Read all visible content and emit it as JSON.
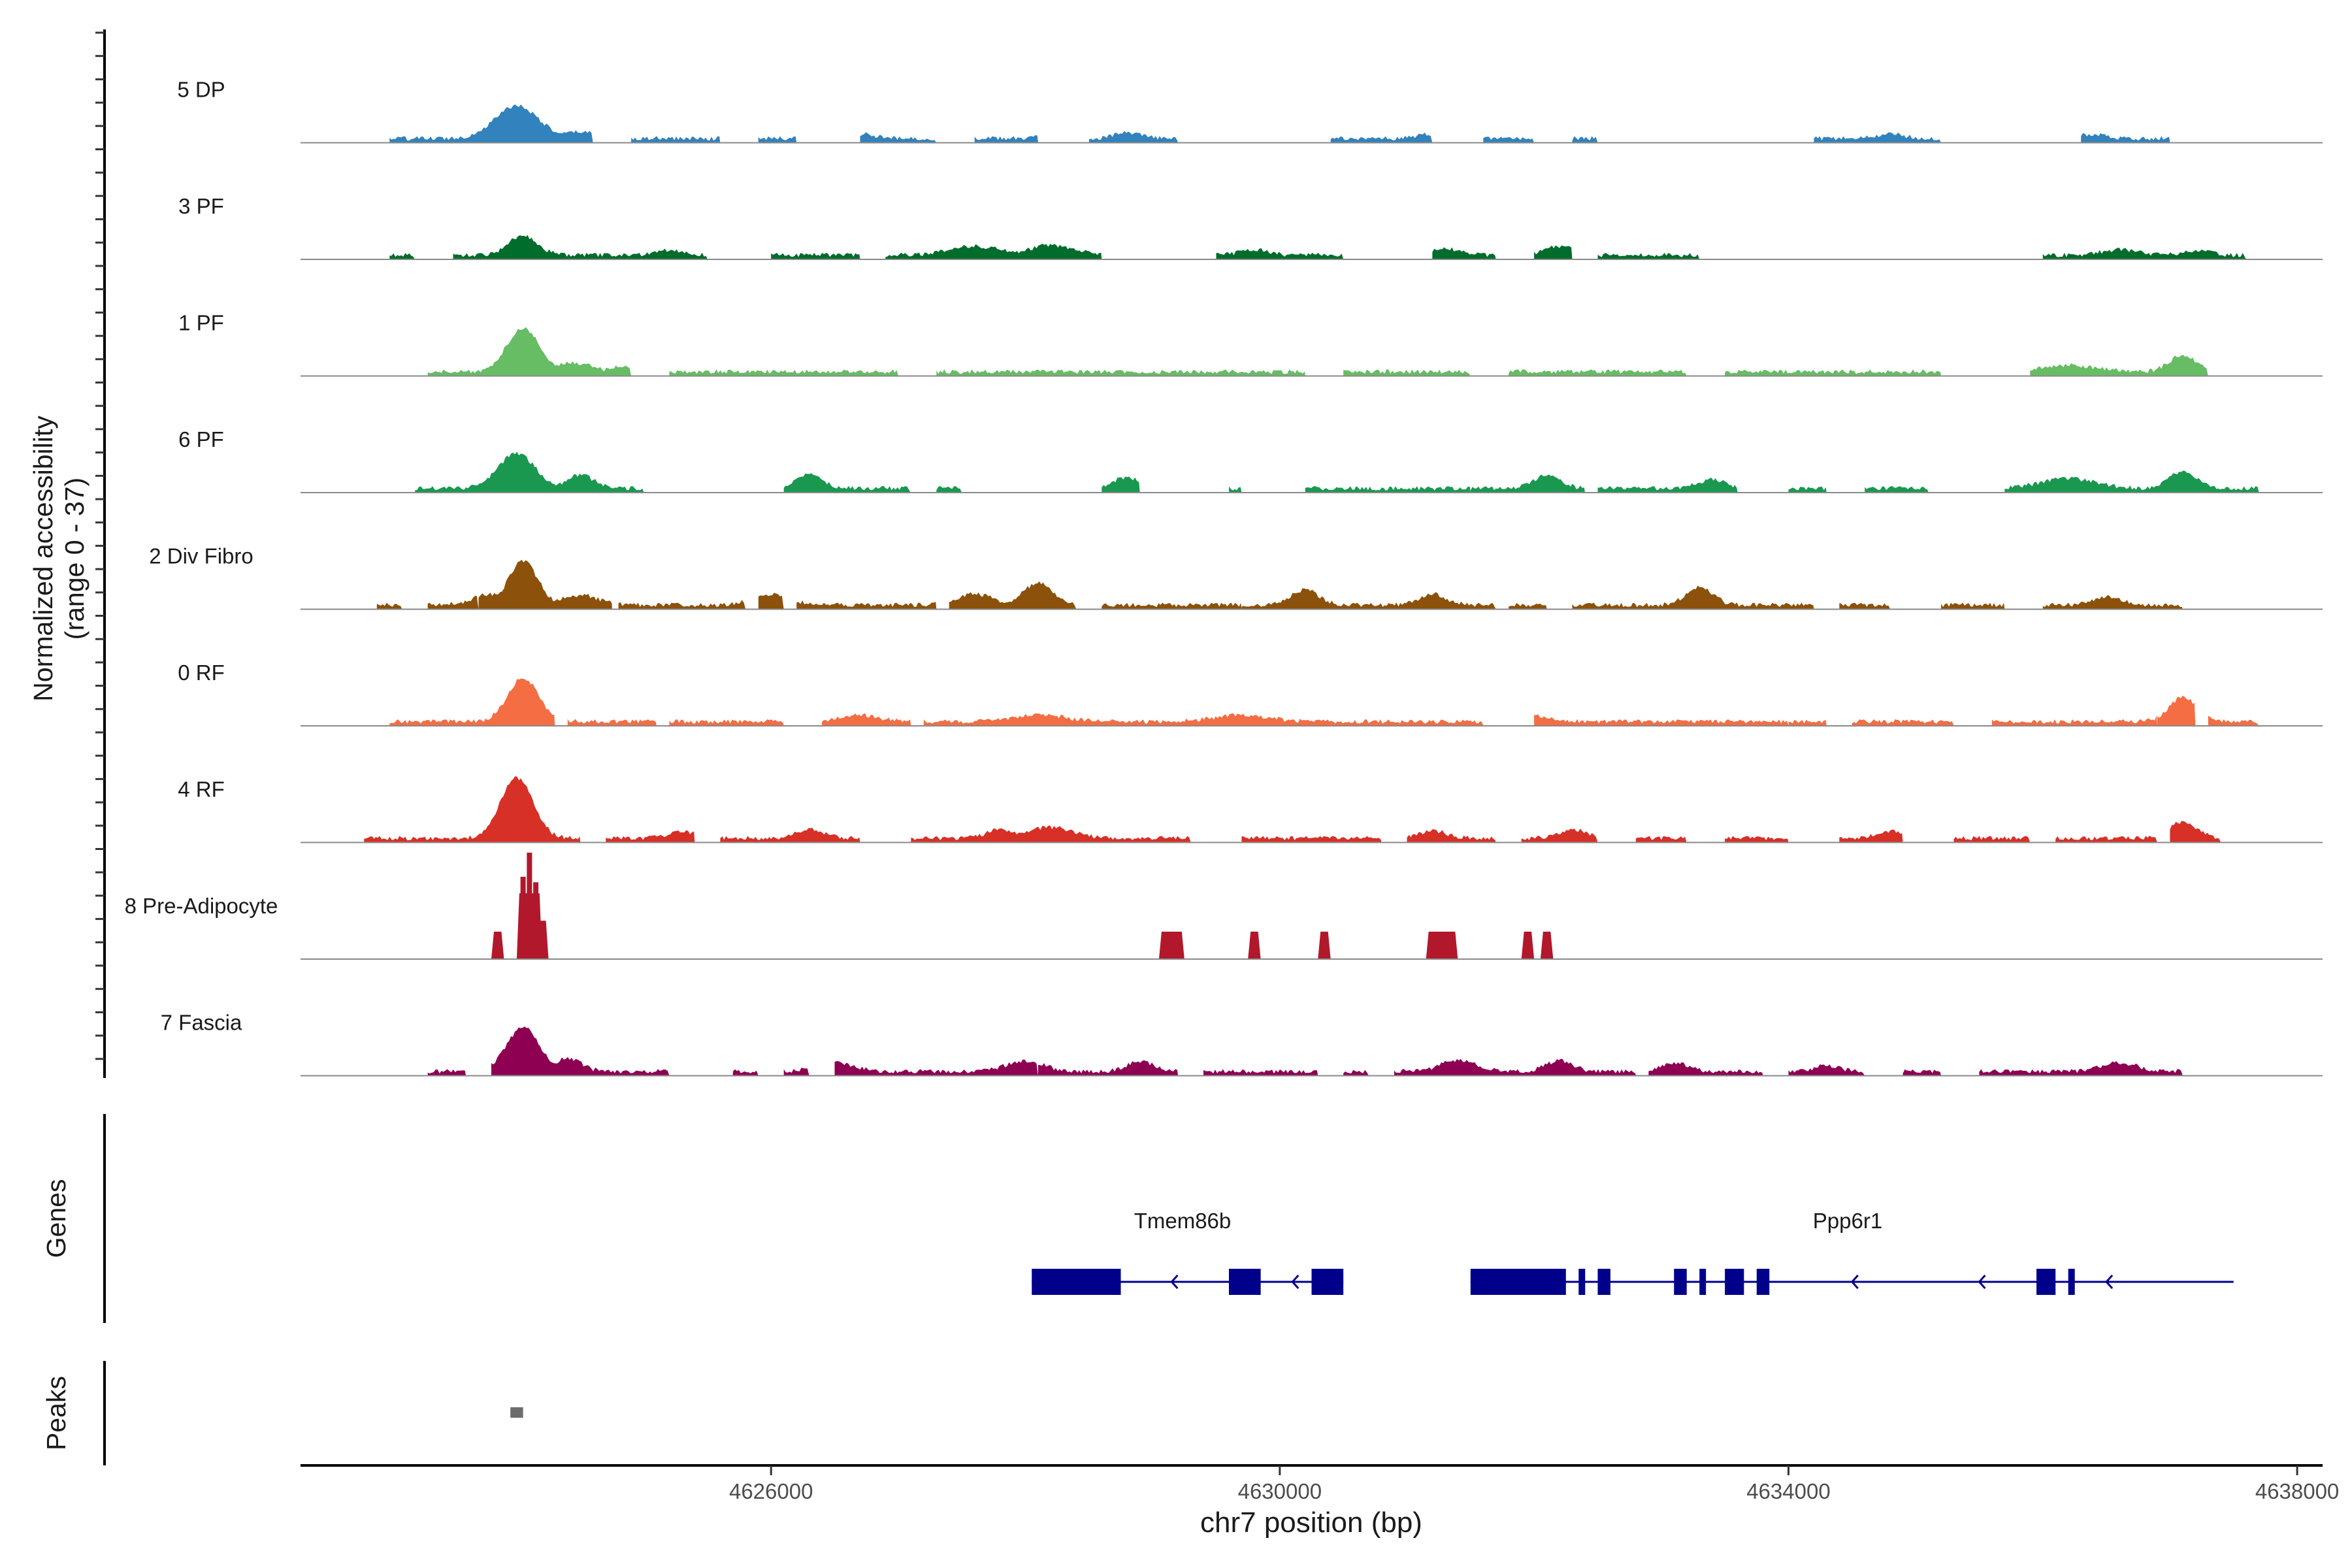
{
  "chart_data": {
    "type": "area",
    "description_title": "",
    "ylabel_line1": "Normalized accessibility",
    "ylabel_line2": "(range 0 - 37)",
    "y_range": [
      0,
      37
    ],
    "xlabel": "chr7 position (bp)",
    "x_range": [
      4622300,
      4638200
    ],
    "x_ticks": [
      4626000,
      4630000,
      4634000,
      4638000
    ],
    "x_tick_labels": [
      "4626000",
      "4630000",
      "4634000",
      "4638000"
    ],
    "genes_panel_label": "Genes",
    "peaks_panel_label": "Peaks",
    "tracks": [
      {
        "name": "5 DP",
        "color": "#3182bd",
        "peaks": [
          [
            4624000,
            30,
            240
          ],
          [
            4624500,
            6,
            200
          ],
          [
            4626700,
            4,
            150
          ],
          [
            4628200,
            4,
            120
          ],
          [
            4628800,
            5,
            150
          ],
          [
            4631200,
            4,
            150
          ],
          [
            4634800,
            4,
            150
          ],
          [
            4636400,
            4,
            150
          ]
        ],
        "coverage": [
          [
            4623000,
            4624600
          ],
          [
            4624900,
            4625600
          ],
          [
            4625900,
            4626200
          ],
          [
            4626700,
            4627300
          ],
          [
            4627600,
            4628100
          ],
          [
            4628500,
            4629200
          ],
          [
            4630400,
            4631200
          ],
          [
            4631600,
            4632000
          ],
          [
            4632300,
            4632500
          ],
          [
            4634200,
            4635200
          ],
          [
            4636300,
            4637000
          ]
        ]
      },
      {
        "name": "3 PF",
        "color": "#006d2c",
        "peaks": [
          [
            4624050,
            18,
            160
          ],
          [
            4625200,
            5,
            150
          ],
          [
            4627600,
            8,
            300
          ],
          [
            4628200,
            9,
            250
          ],
          [
            4629800,
            5,
            150
          ],
          [
            4631300,
            6,
            150
          ],
          [
            4632200,
            8,
            150
          ],
          [
            4636600,
            5,
            200
          ],
          [
            4637200,
            4,
            150
          ]
        ],
        "coverage": [
          [
            4623000,
            4623200
          ],
          [
            4623500,
            4625500
          ],
          [
            4626000,
            4626700
          ],
          [
            4626900,
            4628600
          ],
          [
            4629500,
            4630500
          ],
          [
            4631200,
            4631700
          ],
          [
            4632000,
            4632300
          ],
          [
            4632500,
            4633300
          ],
          [
            4636000,
            4637600
          ]
        ]
      },
      {
        "name": "1 PF",
        "color": "#66bd63",
        "peaks": [
          [
            4624050,
            40,
            180
          ],
          [
            4624450,
            8,
            200
          ],
          [
            4624800,
            5,
            100
          ],
          [
            4636200,
            6,
            300
          ],
          [
            4637100,
            15,
            150
          ]
        ],
        "coverage": [
          [
            4623300,
            4624900
          ],
          [
            4625200,
            4627000
          ],
          [
            4627300,
            4630200
          ],
          [
            4630500,
            4631500
          ],
          [
            4631800,
            4633200
          ],
          [
            4633500,
            4635200
          ],
          [
            4635900,
            4637300
          ]
        ]
      },
      {
        "name": "6 PF",
        "color": "#1a9850",
        "peaks": [
          [
            4624000,
            32,
            200
          ],
          [
            4624500,
            12,
            150
          ],
          [
            4626300,
            12,
            150
          ],
          [
            4628800,
            10,
            150
          ],
          [
            4632100,
            12,
            150
          ],
          [
            4633400,
            8,
            150
          ],
          [
            4636200,
            9,
            300
          ],
          [
            4637100,
            15,
            150
          ]
        ],
        "coverage": [
          [
            4623200,
            4625000
          ],
          [
            4626100,
            4627100
          ],
          [
            4627300,
            4627500
          ],
          [
            4628600,
            4628900
          ],
          [
            4629600,
            4629700
          ],
          [
            4630200,
            4631500
          ],
          [
            4631500,
            4632400
          ],
          [
            4632500,
            4633600
          ],
          [
            4634000,
            4634300
          ],
          [
            4634600,
            4635100
          ],
          [
            4635700,
            4637700
          ]
        ]
      },
      {
        "name": "2 Div Fibro",
        "color": "#8c510a",
        "peaks": [
          [
            4623800,
            10,
            200
          ],
          [
            4624050,
            40,
            160
          ],
          [
            4624500,
            9,
            200
          ],
          [
            4626000,
            10,
            200
          ],
          [
            4627600,
            10,
            200
          ],
          [
            4628100,
            20,
            160
          ],
          [
            4630200,
            14,
            150
          ],
          [
            4631200,
            10,
            150
          ],
          [
            4633300,
            16,
            150
          ],
          [
            4636500,
            8,
            150
          ]
        ],
        "coverage": [
          [
            4622900,
            4623100
          ],
          [
            4623300,
            4623700
          ],
          [
            4623700,
            4624750
          ],
          [
            4624800,
            4625800
          ],
          [
            4625900,
            4626100
          ],
          [
            4626200,
            4627300
          ],
          [
            4627400,
            4628400
          ],
          [
            4628600,
            4629700
          ],
          [
            4629700,
            4631700
          ],
          [
            4631800,
            4632100
          ],
          [
            4632300,
            4634200
          ],
          [
            4634400,
            4634800
          ],
          [
            4635200,
            4635700
          ],
          [
            4636000,
            4637100
          ]
        ]
      },
      {
        "name": "0 RF",
        "color": "#f46d43",
        "peaks": [
          [
            4624050,
            40,
            170
          ],
          [
            4626700,
            6,
            200
          ],
          [
            4628100,
            6,
            300
          ],
          [
            4629700,
            6,
            300
          ],
          [
            4632000,
            5,
            200
          ],
          [
            4637100,
            22,
            150
          ]
        ],
        "coverage": [
          [
            4623000,
            4624300
          ],
          [
            4624400,
            4625100
          ],
          [
            4625200,
            4626100
          ],
          [
            4626400,
            4627100
          ],
          [
            4627200,
            4631600
          ],
          [
            4632000,
            4634000
          ],
          [
            4634000,
            4634300
          ],
          [
            4634500,
            4635300
          ],
          [
            4635600,
            4636900
          ],
          [
            4636900,
            4637200
          ],
          [
            4637300,
            4637700
          ]
        ]
      },
      {
        "name": "4 RF",
        "color": "#d73027",
        "peaks": [
          [
            4624000,
            55,
            180
          ],
          [
            4625300,
            6,
            150
          ],
          [
            4626300,
            8,
            150
          ],
          [
            4627800,
            8,
            150
          ],
          [
            4628200,
            10,
            250
          ],
          [
            4629500,
            8,
            150
          ],
          [
            4631200,
            7,
            150
          ],
          [
            4632300,
            8,
            150
          ],
          [
            4634800,
            6,
            150
          ],
          [
            4637100,
            15,
            150
          ]
        ],
        "coverage": [
          [
            4622800,
            4624500
          ],
          [
            4624700,
            4625400
          ],
          [
            4625600,
            4626700
          ],
          [
            4627100,
            4629300
          ],
          [
            4629700,
            4630800
          ],
          [
            4631000,
            4631700
          ],
          [
            4631900,
            4632500
          ],
          [
            4632800,
            4633200
          ],
          [
            4633500,
            4634000
          ],
          [
            4634400,
            4634900
          ],
          [
            4635300,
            4635900
          ],
          [
            4636100,
            4636900
          ],
          [
            4637000,
            4637400
          ]
        ]
      }
    ],
    "special_tracks": [
      {
        "name": "8 Pre-Adipocyte",
        "color": "#b2182b",
        "blocks": [
          [
            4623800,
            4623900,
            25
          ],
          [
            4624000,
            4624200,
            60
          ],
          [
            4624150,
            4624250,
            35
          ],
          [
            4629050,
            4629250,
            25
          ],
          [
            4629750,
            4629850,
            25
          ],
          [
            4630300,
            4630400,
            25
          ],
          [
            4631150,
            4631400,
            25
          ],
          [
            4631900,
            4632000,
            25
          ],
          [
            4632050,
            4632150,
            25
          ]
        ],
        "spikes": [
          [
            4624100,
            97
          ],
          [
            4624050,
            75
          ],
          [
            4624150,
            70
          ]
        ]
      },
      {
        "name": "7 Fascia",
        "color": "#8e0152",
        "peaks": [
          [
            4624050,
            40,
            180
          ],
          [
            4624400,
            12,
            150
          ],
          [
            4626500,
            8,
            200
          ],
          [
            4628000,
            10,
            200
          ],
          [
            4628900,
            9,
            150
          ],
          [
            4631400,
            10,
            200
          ],
          [
            4632200,
            10,
            150
          ],
          [
            4633100,
            8,
            150
          ],
          [
            4634300,
            5,
            150
          ],
          [
            4636600,
            8,
            200
          ]
        ],
        "coverage": [
          [
            4623300,
            4623600
          ],
          [
            4623800,
            4625200
          ],
          [
            4625700,
            4625900
          ],
          [
            4626100,
            4626300
          ],
          [
            4626500,
            4628100
          ],
          [
            4628100,
            4629200
          ],
          [
            4629400,
            4630300
          ],
          [
            4630500,
            4630700
          ],
          [
            4630900,
            4632800
          ],
          [
            4632900,
            4633800
          ],
          [
            4634000,
            4634600
          ],
          [
            4634900,
            4635200
          ],
          [
            4635500,
            4637100
          ]
        ]
      }
    ],
    "genes": [
      {
        "name": "Tmem86b",
        "strand": "-",
        "line": [
          4628050,
          4630500
        ],
        "exons": [
          [
            4628050,
            4628750
          ],
          [
            4629600,
            4629850
          ],
          [
            4630250,
            4630500
          ]
        ],
        "arrows": [
          4629150,
          4630100
        ]
      },
      {
        "name": "Ppp6r1",
        "strand": "-",
        "line": [
          4631500,
          4637500
        ],
        "exons": [
          [
            4631500,
            4632250
          ],
          [
            4632350,
            4632400
          ],
          [
            4632500,
            4632600
          ],
          [
            4633100,
            4633200
          ],
          [
            4633300,
            4633350
          ],
          [
            4633500,
            4633650
          ],
          [
            4633750,
            4633850
          ],
          [
            4635950,
            4636100
          ],
          [
            4636200,
            4636250
          ]
        ],
        "arrows": [
          4634500,
          4635500,
          4636500
        ]
      }
    ],
    "peaks_panel": [
      [
        4623950,
        4624050
      ]
    ],
    "gene_color": "#00008b",
    "peak_color": "#6d6d6d",
    "track_max": 100
  }
}
